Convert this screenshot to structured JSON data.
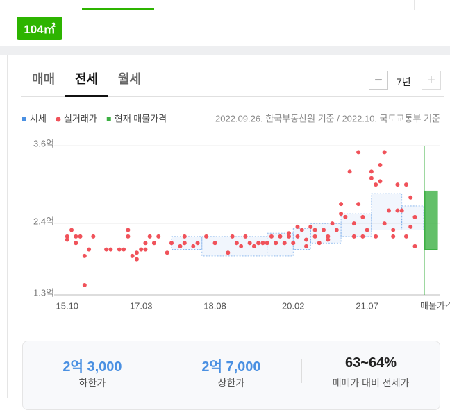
{
  "size_badge": "104㎡",
  "tabs": [
    "매매",
    "전세",
    "월세"
  ],
  "active_tab": 1,
  "period": "7년",
  "source_note": "2022.09.26. 한국부동산원 기준 / 2022.10. 국토교통부 기준",
  "chart_data": {
    "type": "scatter",
    "xlim": [
      "15.07",
      "22.08"
    ],
    "xticks": [
      "15.10",
      "17.03",
      "18.08",
      "20.02",
      "21.07"
    ],
    "listing_axis_label": "매물가격",
    "ylim": [
      1.3,
      3.6
    ],
    "yticks": [
      {
        "value": 1.3,
        "label": "1.3억"
      },
      {
        "value": 2.4,
        "label": "2.4억"
      },
      {
        "value": 3.6,
        "label": "3.6억"
      }
    ],
    "grid": true,
    "series": [
      {
        "name": "시세",
        "type": "band",
        "color": "#4a90e2",
        "x": [
          "17.10",
          "18.05",
          "19.08",
          "20.02",
          "20.06",
          "21.01",
          "21.08",
          "22.03"
        ],
        "low": [
          2.0,
          1.9,
          1.9,
          2.0,
          2.1,
          2.2,
          2.3,
          2.3
        ],
        "high": [
          2.2,
          2.2,
          2.25,
          2.32,
          2.4,
          2.55,
          2.86,
          2.67
        ]
      },
      {
        "name": "실거래가",
        "type": "scatter",
        "color": "#f0525a",
        "x": [
          "15.10",
          "15.10",
          "15.11",
          "15.12",
          "15.12",
          "16.01",
          "16.02",
          "16.02",
          "16.03",
          "16.04",
          "16.07",
          "16.08",
          "16.10",
          "16.11",
          "16.12",
          "16.12",
          "17.01",
          "17.02",
          "17.02",
          "17.03",
          "17.04",
          "17.04",
          "17.05",
          "17.06",
          "17.07",
          "17.09",
          "17.10",
          "17.12",
          "18.01",
          "18.01",
          "18.03",
          "18.04",
          "18.06",
          "18.08",
          "18.11",
          "18.12",
          "19.01",
          "19.02",
          "19.03",
          "19.04",
          "19.05",
          "19.06",
          "19.07",
          "19.08",
          "19.09",
          "19.10",
          "19.11",
          "19.12",
          "20.01",
          "20.01",
          "20.02",
          "20.03",
          "20.03",
          "20.04",
          "20.05",
          "20.05",
          "20.06",
          "20.07",
          "20.07",
          "20.08",
          "20.09",
          "20.10",
          "20.10",
          "20.11",
          "20.12",
          "21.01",
          "21.01",
          "21.02",
          "21.03",
          "21.04",
          "21.04",
          "21.05",
          "21.05",
          "21.06",
          "21.06",
          "21.07",
          "21.08",
          "21.08",
          "21.09",
          "21.09",
          "21.10",
          "21.10",
          "21.11",
          "21.11",
          "21.12",
          "22.01",
          "22.01",
          "22.02",
          "22.02",
          "22.03",
          "22.04",
          "22.04",
          "22.05",
          "22.05",
          "22.06",
          "22.06"
        ],
        "values": [
          2.2,
          2.15,
          2.3,
          2.2,
          2.1,
          2.2,
          1.9,
          1.45,
          2.0,
          2.2,
          2.0,
          2.0,
          2.0,
          2.0,
          2.3,
          2.2,
          1.9,
          1.85,
          1.95,
          2.0,
          2.1,
          2.0,
          2.2,
          2.1,
          2.2,
          1.95,
          2.1,
          2.05,
          2.1,
          2.2,
          2.05,
          2.1,
          2.2,
          2.1,
          1.95,
          2.2,
          2.1,
          2.05,
          2.2,
          2.1,
          2.05,
          2.1,
          2.1,
          2.1,
          2.2,
          2.1,
          2.2,
          2.1,
          2.25,
          2.2,
          2.1,
          2.35,
          2.2,
          2.3,
          2.15,
          2.05,
          2.35,
          2.3,
          2.2,
          2.1,
          2.3,
          2.15,
          2.2,
          2.4,
          2.3,
          2.55,
          2.7,
          2.5,
          3.2,
          2.2,
          2.4,
          3.5,
          2.7,
          2.5,
          2.2,
          2.3,
          3.2,
          3.1,
          2.2,
          3.0,
          3.3,
          3.05,
          3.5,
          2.4,
          2.6,
          2.2,
          2.3,
          3.0,
          2.6,
          2.6,
          3.0,
          2.2,
          2.8,
          2.35,
          2.5,
          2.05
        ]
      },
      {
        "name": "현재 매물가격",
        "type": "range",
        "color": "#3cb043",
        "low": [
          2.0
        ],
        "high": [
          2.9
        ]
      }
    ]
  },
  "summary": [
    {
      "value": "2억 3,000",
      "label": "하한가"
    },
    {
      "value": "2억 7,000",
      "label": "상한가"
    },
    {
      "value": "63~64%",
      "label": "매매가 대비 전세가"
    }
  ]
}
